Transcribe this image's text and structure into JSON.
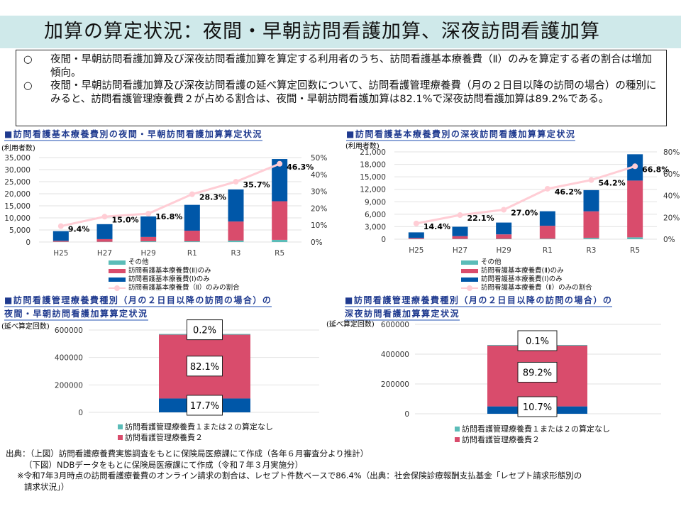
{
  "title": "加算の算定状況：夜間・早朝訪問看護加算、深夜訪問看護加算",
  "summary": [
    {
      "bullet": "○",
      "text": "夜間・早朝訪問看護加算及び深夜訪問看護加算を算定する利用者のうち、訪問看護基本療養費（Ⅱ）のみを算定する者の割合は増加傾向。"
    },
    {
      "bullet": "○",
      "text": "夜間・早朝訪問看護加算及び深夜訪問看護の延べ算定回数について、訪問看護管理療養費（月の２日目以降の訪問の場合）の種別にみると、訪問看護管理療養費２が占める割合は、夜間・早朝訪問看護加算は82.1%で深夜訪問看護加算は89.2%である。"
    }
  ],
  "colors": {
    "other": "#5bbcb8",
    "basic2": "#d94c6c",
    "basic1": "#0057a8",
    "ratio_line": "#ffcdd5",
    "banner": "#cfe9ea",
    "section": "#1f3a8f"
  },
  "chart_data": [
    {
      "type": "bar",
      "stacked": true,
      "title": "■訪問看護基本療養費別の夜間・早朝訪問看護加算算定状況",
      "ylabel": "(利用者数)",
      "categories": [
        "H25",
        "H27",
        "H29",
        "R1",
        "R3",
        "R5"
      ],
      "ylim": [
        0,
        35000
      ],
      "yticks": [
        "35,000",
        "30,000",
        "25,000",
        "20,000",
        "15,000",
        "10,000",
        "5,000",
        "0"
      ],
      "y2lim": [
        0,
        50
      ],
      "y2ticks": [
        "50%",
        "40%",
        "30%",
        "20%",
        "10%",
        "0%"
      ],
      "grid": true,
      "legend_placement": "bottom",
      "series": [
        {
          "name": "その他",
          "color": "#5bbcb8",
          "values": [
            100,
            100,
            300,
            300,
            600,
            900
          ]
        },
        {
          "name": "訪問看護基本療養費(Ⅱ)のみ",
          "color": "#d94c6c",
          "values": [
            400,
            1100,
            1800,
            4400,
            7900,
            16000
          ]
        },
        {
          "name": "訪問看護基本療養費(Ⅰ)のみ",
          "color": "#0057a8",
          "values": [
            4000,
            6200,
            8500,
            10700,
            13300,
            17500
          ]
        }
      ],
      "line": {
        "name": "訪問看護基本療養費（Ⅱ）のみの割合",
        "color": "#ffcdd5",
        "values": [
          9.4,
          15.0,
          16.8,
          28.3,
          35.7,
          46.3
        ],
        "labels": [
          "9.4%",
          "15.0%",
          "16.8%",
          "28.3%",
          "35.7%",
          "46.3%"
        ]
      }
    },
    {
      "type": "bar",
      "stacked": true,
      "title": "■訪問看護基本療養費別の深夜訪問看護加算算定状況",
      "ylabel": "(利用者数)",
      "categories": [
        "H25",
        "H27",
        "H29",
        "R1",
        "R3",
        "R5"
      ],
      "ylim": [
        0,
        21000
      ],
      "yticks": [
        "21,000",
        "18,000",
        "15,000",
        "12,000",
        "9,000",
        "6,000",
        "3,000",
        "0"
      ],
      "y2lim": [
        0,
        80
      ],
      "y2ticks": [
        "80%",
        "60%",
        "40%",
        "20%",
        "0%"
      ],
      "grid": true,
      "legend_placement": "bottom",
      "series": [
        {
          "name": "その他",
          "color": "#5bbcb8",
          "values": [
            50,
            70,
            80,
            120,
            300,
            450
          ]
        },
        {
          "name": "訪問看護基本療養費(Ⅱ)のみ",
          "color": "#d94c6c",
          "values": [
            240,
            660,
            1080,
            3100,
            6400,
            13650
          ]
        },
        {
          "name": "訪問看護基本療養費(Ⅰ)のみ",
          "color": "#0057a8",
          "values": [
            1350,
            2260,
            2840,
            3500,
            5100,
            6330
          ]
        }
      ],
      "line": {
        "name": "訪問看護基本療養費（Ⅱ）のみの割合",
        "color": "#ffcdd5",
        "values": [
          14.4,
          22.1,
          27.0,
          46.2,
          54.2,
          66.8
        ],
        "labels": [
          "14.4%",
          "22.1%",
          "27.0%",
          "46.2%",
          "54.2%",
          "66.8%"
        ]
      }
    },
    {
      "type": "bar",
      "stacked": true,
      "title_line1": "■訪問看護管理療養費種別（月の２日目以降の訪問の場合）の",
      "title_line2": "夜間・早朝訪問看護加算算定状況",
      "ylabel": "(延べ算定回数)",
      "ylim": [
        0,
        600000
      ],
      "yticks": [
        "600000",
        "400000",
        "200000",
        "0"
      ],
      "grid": true,
      "total": 571000,
      "segments": [
        {
          "share": 17.7,
          "label": "17.7%",
          "color": "#0057a8"
        },
        {
          "share": 82.1,
          "label": "82.1%",
          "color": "#d94c6c"
        },
        {
          "share": 0.2,
          "label": "0.2%",
          "color": "#5bbcb8"
        }
      ],
      "legend": [
        {
          "name": "訪問看護管理療養費１または２の算定なし",
          "color": "#5bbcb8"
        },
        {
          "name": "訪問看護管理療養費２",
          "color": "#d94c6c"
        }
      ]
    },
    {
      "type": "bar",
      "stacked": true,
      "title_line1": "■訪問看護管理療養費種別（月の２日目以降の訪問の場合）の",
      "title_line2": "深夜訪問看護加算算定状況",
      "ylabel": "(延べ算定回数)",
      "ylim": [
        0,
        600000
      ],
      "yticks": [
        "600000",
        "400000",
        "200000",
        "0"
      ],
      "grid": true,
      "total": 462000,
      "segments": [
        {
          "share": 10.7,
          "label": "10.7%",
          "color": "#0057a8"
        },
        {
          "share": 89.2,
          "label": "89.2%",
          "color": "#d94c6c"
        },
        {
          "share": 0.1,
          "label": "0.1%",
          "color": "#5bbcb8"
        }
      ],
      "legend": [
        {
          "name": "訪問看護管理療養費１または２の算定なし",
          "color": "#5bbcb8"
        },
        {
          "name": "訪問看護管理療養費２",
          "color": "#d94c6c"
        }
      ]
    }
  ],
  "source": {
    "line1": "出典：（上図）訪問看護療養費実態調査をもとに保険局医療課にて作成（各年６月審査分より推計）",
    "line2": "（下図）NDBデータをもとに保険局医療課にて作成（令和７年３月実施分）",
    "line3": "※令和7年3月時点の訪問看護療養費のオンライン請求の割合は、レセプト件数ベースで86.4%（出典：社会保険診療報酬支払基金「レセプト請求形態別の",
    "line4": "請求状況」）"
  }
}
